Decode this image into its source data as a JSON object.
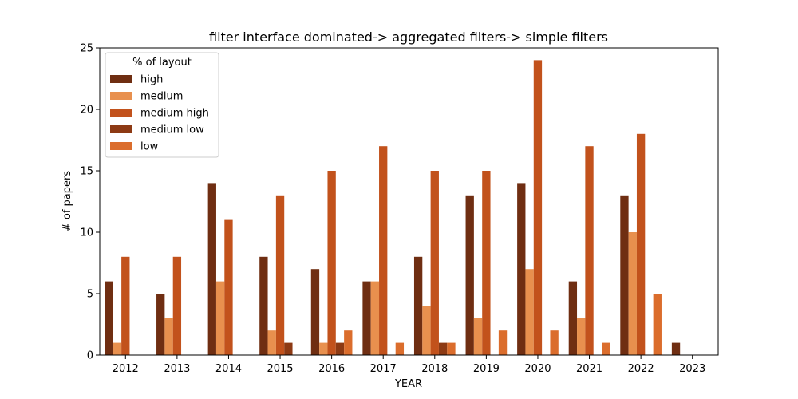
{
  "chart_data": {
    "type": "bar",
    "title": "filter interface dominated-> aggregated filters-> simple filters",
    "xlabel": "YEAR",
    "ylabel": "# of papers",
    "ylim": [
      0,
      25
    ],
    "yticks": [
      0,
      5,
      10,
      15,
      20,
      25
    ],
    "categories": [
      "2012",
      "2013",
      "2014",
      "2015",
      "2016",
      "2017",
      "2018",
      "2019",
      "2020",
      "2021",
      "2022",
      "2023"
    ],
    "legend": {
      "title": "% of layout",
      "placement": "upper-left"
    },
    "series": [
      {
        "name": "high",
        "color": "#6f2e12",
        "values": [
          6,
          5,
          14,
          8,
          7,
          6,
          8,
          13,
          14,
          6,
          13,
          1
        ]
      },
      {
        "name": "medium",
        "color": "#e8904e",
        "values": [
          1,
          3,
          6,
          2,
          1,
          6,
          4,
          3,
          7,
          3,
          10,
          0
        ]
      },
      {
        "name": "medium high",
        "color": "#c2521c",
        "values": [
          8,
          8,
          11,
          13,
          15,
          17,
          15,
          15,
          24,
          17,
          18,
          0
        ]
      },
      {
        "name": "medium low",
        "color": "#8d3a14",
        "values": [
          0,
          0,
          0,
          1,
          1,
          0,
          1,
          0,
          0,
          0,
          0,
          0
        ]
      },
      {
        "name": "low",
        "color": "#db6d2c",
        "values": [
          0,
          0,
          0,
          0,
          2,
          1,
          1,
          2,
          2,
          1,
          5,
          0
        ]
      }
    ]
  }
}
